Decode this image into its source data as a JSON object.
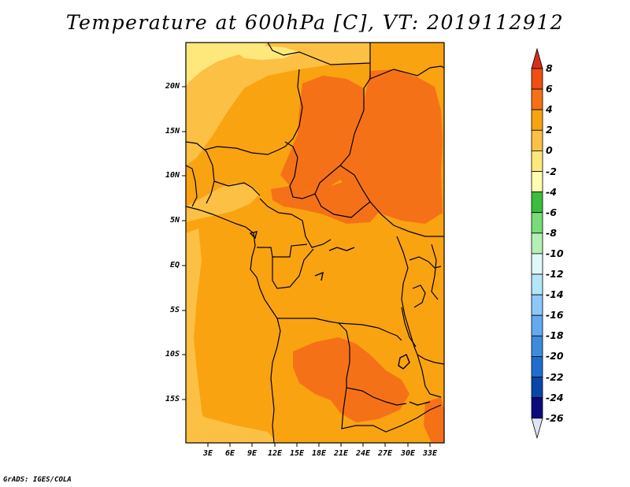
{
  "title": "Temperature at 600hPa [C], VT: 2019112912",
  "credit": "GrADS: IGES/COLA",
  "map": {
    "lat_labels": [
      "20N",
      "15N",
      "10N",
      "5N",
      "EQ",
      "5S",
      "10S",
      "15S"
    ],
    "lon_labels": [
      "3E",
      "6E",
      "9E",
      "12E",
      "15E",
      "18E",
      "21E",
      "24E",
      "27E",
      "30E",
      "33E"
    ],
    "field_colors": {
      "light_yellow": "#fee87c",
      "light_orange": "#fbc044",
      "orange": "#f9a311",
      "dark_orange": "#f57117",
      "coast_line": "#000000"
    }
  },
  "colorbar": {
    "labels": [
      "8",
      "6",
      "4",
      "2",
      "0",
      "-2",
      "-4",
      "-6",
      "-8",
      "-10",
      "-12",
      "-14",
      "-16",
      "-18",
      "-20",
      "-22",
      "-24",
      "-26"
    ],
    "colors": [
      "#d92d1b",
      "#f04e13",
      "#f57117",
      "#f9a311",
      "#fbc044",
      "#fee87c",
      "#fefeb0",
      "#3cbe3c",
      "#78dc78",
      "#b4f0b4",
      "#e0f8f8",
      "#b4e6fa",
      "#8cc8f8",
      "#64aaf0",
      "#3c8cdc",
      "#1e6ed2",
      "#0a46aa",
      "#0a0a7d",
      "#e1e1fa"
    ]
  }
}
